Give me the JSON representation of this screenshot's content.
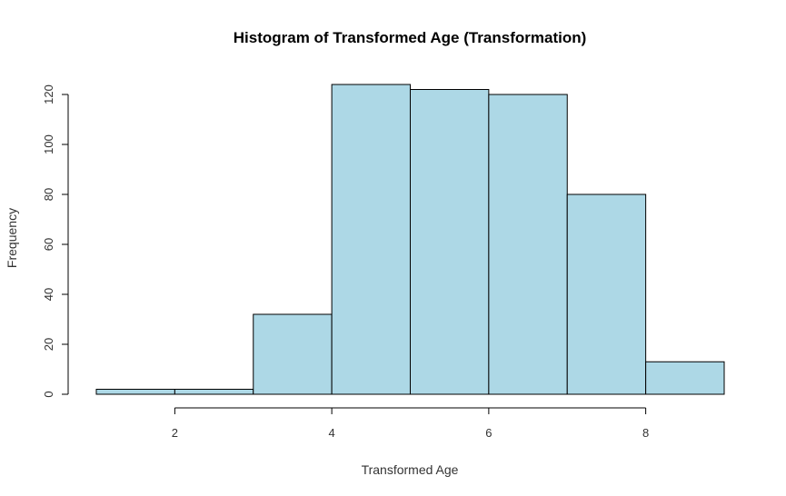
{
  "chart_data": {
    "type": "bar",
    "title": "Histogram of Transformed Age (Transformation)",
    "xlabel": "Transformed Age",
    "ylabel": "Frequency",
    "bins": [
      {
        "start": 1,
        "end": 2,
        "count": 2
      },
      {
        "start": 2,
        "end": 3,
        "count": 2
      },
      {
        "start": 3,
        "end": 4,
        "count": 32
      },
      {
        "start": 4,
        "end": 5,
        "count": 124
      },
      {
        "start": 5,
        "end": 6,
        "count": 122
      },
      {
        "start": 6,
        "end": 7,
        "count": 120
      },
      {
        "start": 7,
        "end": 8,
        "count": 80
      },
      {
        "start": 8,
        "end": 9,
        "count": 13
      }
    ],
    "xlim": [
      1,
      9
    ],
    "ylim": [
      0,
      124
    ],
    "xticks": [
      2,
      4,
      6,
      8
    ],
    "yticks": [
      0,
      20,
      40,
      60,
      80,
      100,
      120
    ],
    "bar_color": "#add8e6",
    "edge_color": "#000000",
    "grid": false
  }
}
